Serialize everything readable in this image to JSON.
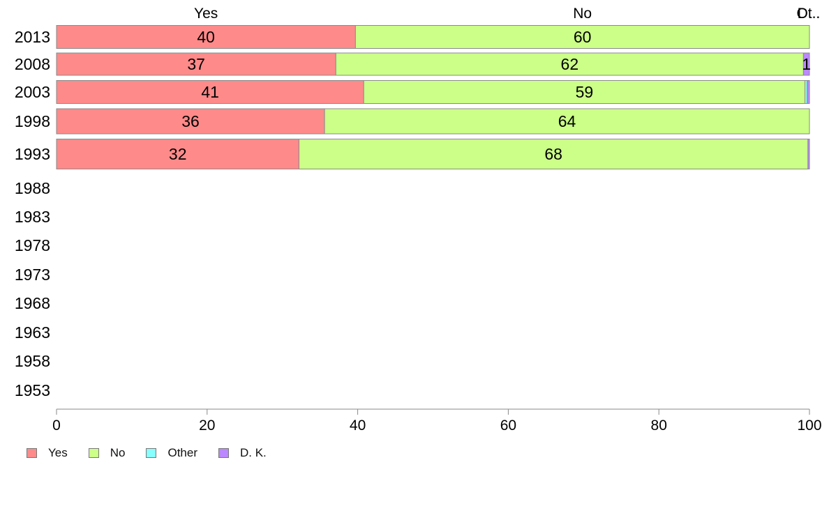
{
  "chart_data": {
    "type": "bar",
    "orientation": "horizontal",
    "stacked": true,
    "categories": [
      "2013",
      "2008",
      "2003",
      "1998",
      "1993",
      "1988",
      "1983",
      "1978",
      "1973",
      "1968",
      "1963",
      "1958",
      "1953"
    ],
    "series": [
      {
        "name": "Yes",
        "color": "#FF8A8A",
        "values": [
          39.7,
          37.1,
          40.8,
          35.6,
          32.2,
          null,
          null,
          null,
          null,
          null,
          null,
          null,
          null
        ],
        "labels": [
          "40",
          "37",
          "41",
          "36",
          "32",
          "",
          "",
          "",
          "",
          "",
          "",
          "",
          ""
        ]
      },
      {
        "name": "No",
        "color": "#CCFF88",
        "values": [
          60.3,
          62.1,
          58.6,
          64.4,
          67.6,
          null,
          null,
          null,
          null,
          null,
          null,
          null,
          null
        ],
        "labels": [
          "60",
          "62",
          "59",
          "64",
          "68",
          "",
          "",
          "",
          "",
          "",
          "",
          "",
          ""
        ]
      },
      {
        "name": "Other",
        "color": "#88FFFF",
        "values": [
          0.0,
          0.0,
          0.3,
          0.0,
          0.0,
          null,
          null,
          null,
          null,
          null,
          null,
          null,
          null
        ],
        "labels": [
          "",
          "",
          "",
          "",
          "",
          "",
          "",
          "",
          "",
          "",
          "",
          "",
          ""
        ]
      },
      {
        "name": "D. K.",
        "color": "#BB88FF",
        "values": [
          0.0,
          0.8,
          0.3,
          0.0,
          0.2,
          null,
          null,
          null,
          null,
          null,
          null,
          null,
          null
        ],
        "labels": [
          "",
          "1",
          "",
          "",
          "",
          "",
          "",
          "",
          "",
          "",
          "",
          "",
          ""
        ]
      }
    ],
    "top_labels": [
      {
        "text": "Yes",
        "value": 19.85
      },
      {
        "text": "No",
        "value": 69.85
      },
      {
        "text": "Ot..",
        "value": 99.85
      },
      {
        "text": "D...",
        "value": 99.9
      }
    ],
    "xlim": [
      0,
      100
    ],
    "xticks": [
      0,
      20,
      40,
      60,
      80,
      100
    ],
    "grid": false,
    "legend_position": "bottom-left"
  }
}
